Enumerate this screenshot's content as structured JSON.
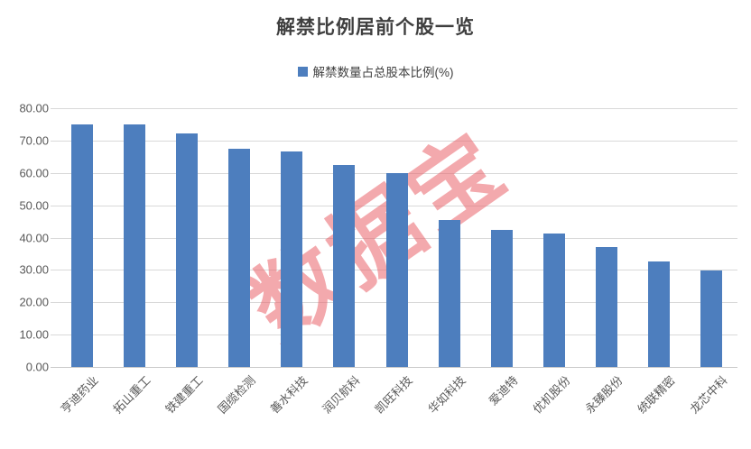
{
  "chart": {
    "watermark": "数据宝",
    "colors": {
      "bar": "#4d7ebe",
      "gridline": "#d9d9d9",
      "axis_text": "#595959",
      "title_text": "#3f3f3f",
      "watermark_pink": "#e96269"
    }
  },
  "chart_data": {
    "type": "bar",
    "title": "解禁比例居前个股一览",
    "legend": [
      "解禁数量占总股本比例(%)"
    ],
    "legend_position": "top",
    "categories": [
      "亨迪药业",
      "拓山重工",
      "铁建重工",
      "国缆检测",
      "善水科技",
      "润贝航科",
      "凯旺科技",
      "华如科技",
      "爱迪特",
      "优机股份",
      "永臻股份",
      "统联精密",
      "龙芯中科"
    ],
    "values": [
      75.0,
      75.0,
      72.2,
      67.5,
      66.6,
      62.5,
      59.8,
      45.4,
      42.4,
      41.2,
      37.0,
      32.6,
      29.8
    ],
    "xlabel": "",
    "ylabel": "",
    "ylim": [
      0,
      80
    ],
    "y_tick_step": 10,
    "y_tick_decimals": 2,
    "grid": true
  }
}
